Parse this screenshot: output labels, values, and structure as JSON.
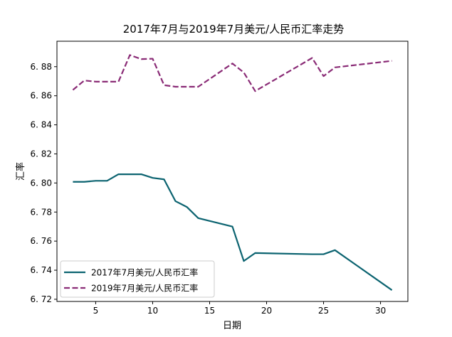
{
  "chart_data": {
    "type": "line",
    "title": "2017年7月与2019年7月美元/人民币汇率走势",
    "xlabel": "日期",
    "ylabel": "汇率",
    "xlim": [
      1.6,
      32.4
    ],
    "ylim": [
      6.7185,
      6.8975
    ],
    "xticks": [
      5,
      10,
      15,
      20,
      25,
      30
    ],
    "yticks": [
      6.72,
      6.74,
      6.76,
      6.78,
      6.8,
      6.82,
      6.84,
      6.86,
      6.88
    ],
    "ytick_labels": [
      "6. 72",
      "6. 74",
      "6. 76",
      "6. 78",
      "6. 80",
      "6. 82",
      "6. 84",
      "6. 86",
      "6. 88"
    ],
    "grid": false,
    "legend_position": "lower-left",
    "series": [
      {
        "name": "2017年7月美元/人民币汇率",
        "color": "#0b6370",
        "style": "solid",
        "x": [
          3,
          4,
          5,
          6,
          7,
          8,
          9,
          10,
          11,
          12,
          13,
          14,
          17,
          18,
          19,
          24,
          25,
          26,
          31
        ],
        "y": [
          6.8008,
          6.8008,
          6.8015,
          6.8015,
          6.806,
          6.806,
          6.806,
          6.8035,
          6.8025,
          6.7875,
          6.7835,
          6.7758,
          6.77,
          6.7463,
          6.7518,
          6.751,
          6.751,
          6.7538,
          6.7263
        ]
      },
      {
        "name": "2019年7月美元/人民币汇率",
        "color": "#8a2b76",
        "style": "dashed",
        "x": [
          3,
          4,
          5,
          6,
          7,
          8,
          9,
          10,
          11,
          12,
          13,
          14,
          17,
          18,
          19,
          24,
          25,
          26,
          31
        ],
        "y": [
          6.864,
          6.8705,
          6.8697,
          6.8697,
          6.8697,
          6.888,
          6.8852,
          6.8855,
          6.8673,
          6.8662,
          6.8662,
          6.8662,
          6.8822,
          6.876,
          6.8632,
          6.886,
          6.8735,
          6.8795,
          6.884
        ]
      }
    ]
  }
}
